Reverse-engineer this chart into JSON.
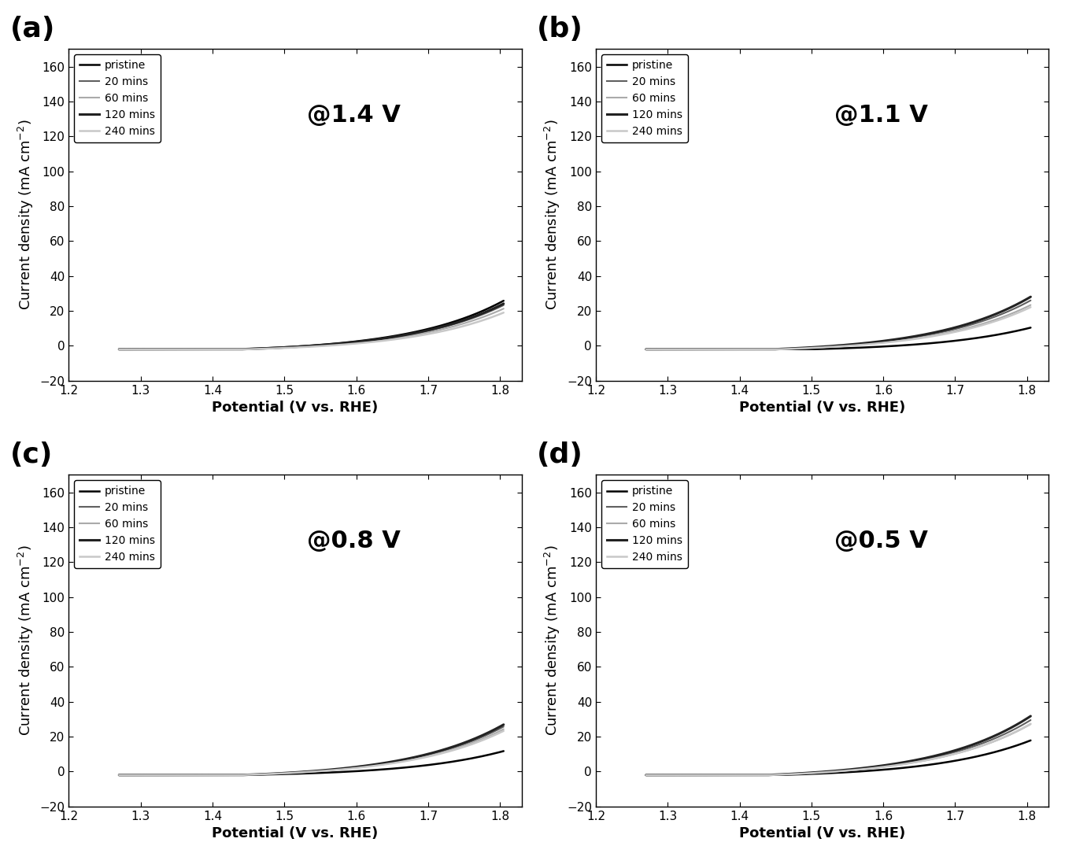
{
  "subplots": [
    {
      "label": "(a)",
      "annotation": "@1.4 V"
    },
    {
      "label": "(b)",
      "annotation": "@1.1 V"
    },
    {
      "label": "(c)",
      "annotation": "@0.8 V"
    },
    {
      "label": "(d)",
      "annotation": "@0.5 V"
    }
  ],
  "legend_entries": [
    "pristine",
    "20 mins",
    "60 mins",
    "120 mins",
    "240 mins"
  ],
  "line_colors": {
    "pristine": "#000000",
    "20 mins": "#606060",
    "60 mins": "#aaaaaa",
    "120 mins": "#222222",
    "240 mins": "#c8c8c8"
  },
  "line_widths": {
    "pristine": 1.8,
    "20 mins": 1.5,
    "60 mins": 1.5,
    "120 mins": 2.2,
    "240 mins": 1.8
  },
  "xlim": [
    1.2,
    1.83
  ],
  "ylim": [
    -20,
    170
  ],
  "xticks": [
    1.2,
    1.3,
    1.4,
    1.5,
    1.6,
    1.7,
    1.8
  ],
  "yticks": [
    -20,
    0,
    20,
    40,
    60,
    80,
    100,
    120,
    140,
    160
  ],
  "xlabel": "Potential (V vs. RHE)",
  "ylabel": "Current density (mA cm$^{-2}$)",
  "background_color": "#ffffff",
  "label_fontsize": 13,
  "tick_fontsize": 11,
  "annotation_fontsize": 22,
  "panel_label_fontsize": 26
}
